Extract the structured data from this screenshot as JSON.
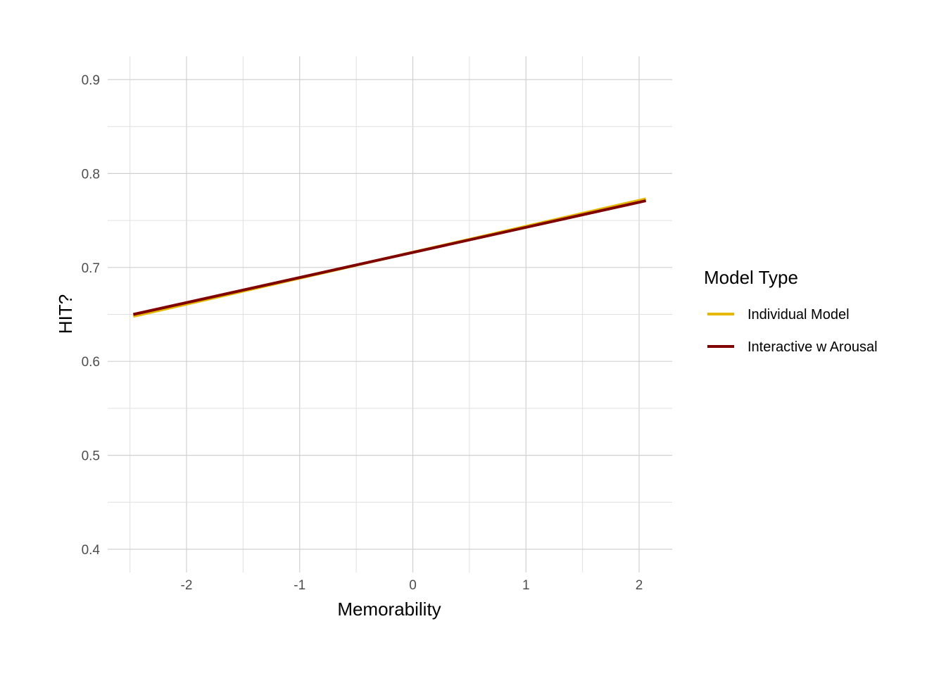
{
  "chart_data": {
    "type": "line",
    "xlabel": "Memorability",
    "ylabel": "HIT?",
    "xlim": [
      -2.5,
      2.05
    ],
    "ylim": [
      0.4,
      0.9
    ],
    "x_ticks": [
      -2,
      -1,
      0,
      1,
      2
    ],
    "x_tick_labels": [
      "-2",
      "-1",
      "0",
      "1",
      "2"
    ],
    "y_ticks": [
      0.4,
      0.5,
      0.6,
      0.7,
      0.8,
      0.9
    ],
    "y_tick_labels": [
      "0.4",
      "0.5",
      "0.6",
      "0.7",
      "0.8",
      "0.9"
    ],
    "grid": true,
    "legend_title": "Model Type",
    "legend_position": "right",
    "series": [
      {
        "name": "Individual Model",
        "color": "#E6B800",
        "x": [
          -2.47,
          2.06
        ],
        "y": [
          0.648,
          0.773
        ]
      },
      {
        "name": "Interactive w Arousal",
        "color": "#800000",
        "x": [
          -2.47,
          2.06
        ],
        "y": [
          0.65,
          0.771
        ]
      }
    ]
  }
}
